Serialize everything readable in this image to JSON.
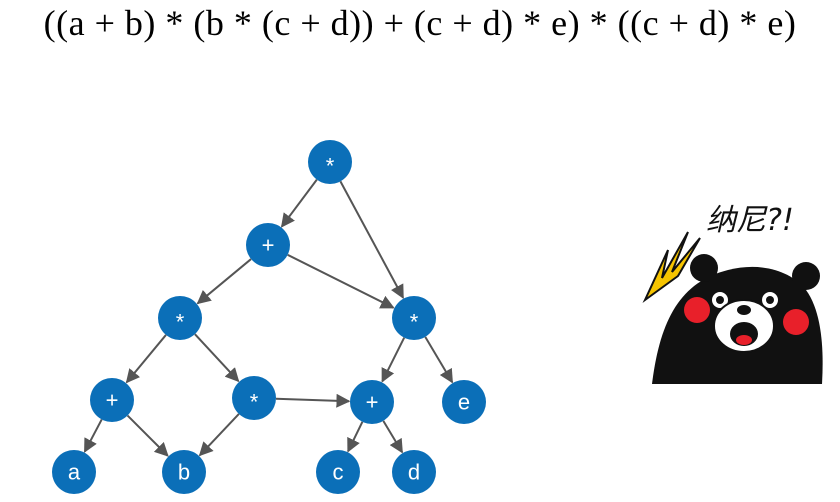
{
  "expression": "((a + b) * (b * (c + d)) + (c + d) * e) * ((c + d) * e)",
  "dag": {
    "nodes": [
      {
        "id": "root_mul",
        "label": "*"
      },
      {
        "id": "plus1",
        "label": "+"
      },
      {
        "id": "mul_left",
        "label": "*"
      },
      {
        "id": "mul_right",
        "label": "*"
      },
      {
        "id": "plus_ab",
        "label": "+"
      },
      {
        "id": "mul_bcd",
        "label": "*"
      },
      {
        "id": "plus_cd",
        "label": "+"
      },
      {
        "id": "e",
        "label": "e"
      },
      {
        "id": "a",
        "label": "a"
      },
      {
        "id": "b",
        "label": "b"
      },
      {
        "id": "c",
        "label": "c"
      },
      {
        "id": "d",
        "label": "d"
      }
    ],
    "edges": [
      [
        "root_mul",
        "plus1"
      ],
      [
        "root_mul",
        "mul_right"
      ],
      [
        "plus1",
        "mul_left"
      ],
      [
        "plus1",
        "mul_right"
      ],
      [
        "mul_left",
        "plus_ab"
      ],
      [
        "mul_left",
        "mul_bcd"
      ],
      [
        "mul_right",
        "plus_cd"
      ],
      [
        "mul_right",
        "e"
      ],
      [
        "plus_ab",
        "a"
      ],
      [
        "plus_ab",
        "b"
      ],
      [
        "mul_bcd",
        "b"
      ],
      [
        "mul_bcd",
        "plus_cd"
      ],
      [
        "plus_cd",
        "c"
      ],
      [
        "plus_cd",
        "d"
      ]
    ]
  },
  "sticker": {
    "exclamation": "纳尼?!",
    "icon": "kumamon-surprised-icon",
    "colors": {
      "accent": "#f6c400",
      "cheek": "#e8202a",
      "body": "#111111"
    }
  },
  "colors": {
    "node": "#0b6fb8",
    "edge": "#555555",
    "text": "#000000"
  }
}
